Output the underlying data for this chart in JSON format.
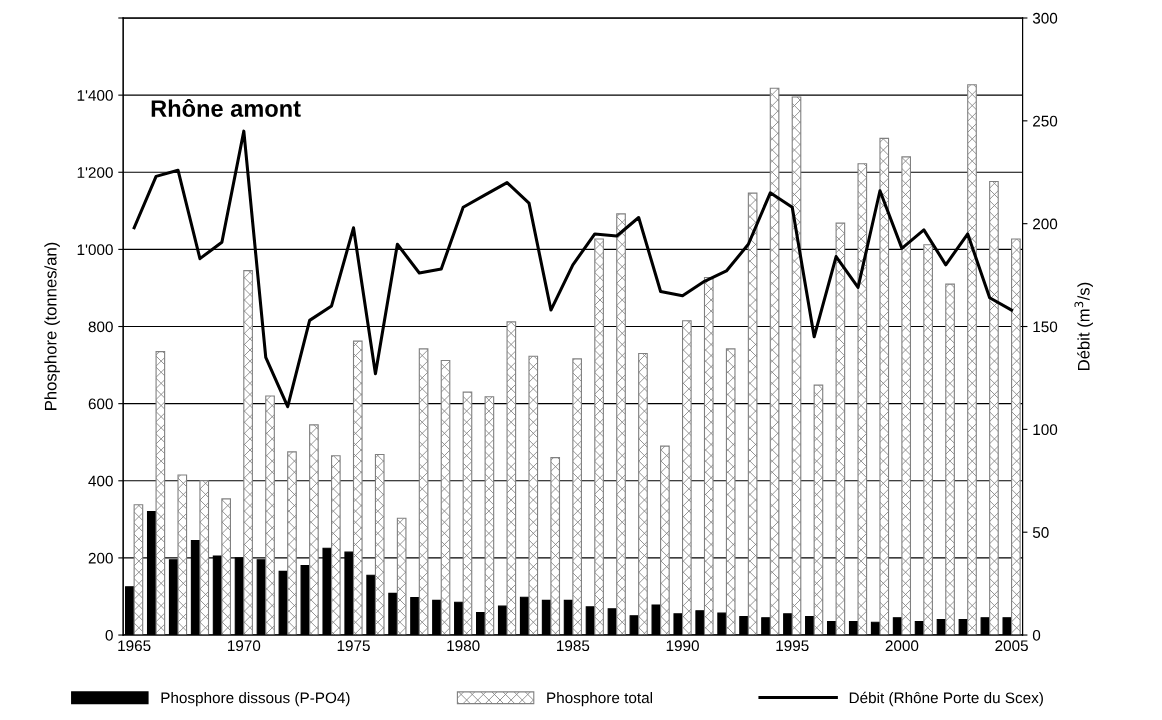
{
  "chart_data": {
    "type": "bar",
    "title": "Rhône amont",
    "ylabel": "Phosphore (tonnes/an)",
    "y2label": "Débit (m$^{3}$/s)",
    "categories": [
      "1965",
      null,
      null,
      null,
      null,
      "1970",
      null,
      null,
      null,
      null,
      "1975",
      null,
      null,
      null,
      null,
      "1980",
      null,
      null,
      null,
      null,
      "1985",
      null,
      null,
      null,
      null,
      "1990",
      null,
      null,
      null,
      null,
      "1995",
      null,
      null,
      null,
      null,
      "2000",
      null,
      null,
      null,
      null,
      "2005"
    ],
    "series": [
      {
        "name": "Phosphore dissous (P-PO4)",
        "color": "#000000",
        "values": [
          125,
          320,
          195,
          245,
          205,
          200,
          195,
          165,
          180,
          225,
          215,
          155,
          108,
          97,
          90,
          85,
          58,
          75,
          98,
          90,
          90,
          73,
          68,
          50,
          78,
          55,
          63,
          57,
          48,
          45,
          55,
          48,
          35,
          35,
          33,
          45,
          35,
          40,
          40,
          45,
          45
        ]
      },
      {
        "name": "Phosphore total",
        "color": "#808080",
        "values": [
          338,
          735,
          415,
          400,
          353,
          945,
          620,
          475,
          545,
          465,
          762,
          468,
          303,
          742,
          712,
          630,
          618,
          812,
          723,
          460,
          716,
          1027,
          1092,
          730,
          490,
          815,
          927,
          742,
          1146,
          1418,
          1395,
          648,
          1068,
          1222,
          1288,
          1240,
          1012,
          910,
          1427,
          1176,
          1027
        ]
      },
      {
        "name": "Débit (Rhône Porte du Scex)",
        "type": "line",
        "axis": "y2",
        "color": "#000000",
        "values": [
          198,
          223,
          226,
          183,
          191,
          245,
          135,
          111,
          153,
          160,
          198,
          127,
          190,
          176,
          178,
          208,
          214,
          220,
          210,
          158,
          180,
          195,
          194,
          203,
          167,
          165,
          172,
          177,
          190,
          215,
          208,
          145,
          184,
          169,
          216,
          188,
          197,
          180,
          195,
          164,
          158
        ]
      }
    ],
    "ylim": [
      0,
      1600
    ],
    "yticks": [
      0,
      200,
      400,
      600,
      800,
      {
        "value": 1000,
        "label": "1'000"
      },
      {
        "value": 1200,
        "label": "1'200"
      },
      {
        "value": 1400,
        "label": "1'400"
      },
      {
        "value": 1600,
        "label": null
      }
    ],
    "y2lim": [
      0,
      300
    ],
    "y2ticks": [
      0,
      50,
      100,
      150,
      200,
      250,
      300
    ],
    "grid": "y",
    "legend": "bottom",
    "marker": "none",
    "line_style": "solid"
  }
}
